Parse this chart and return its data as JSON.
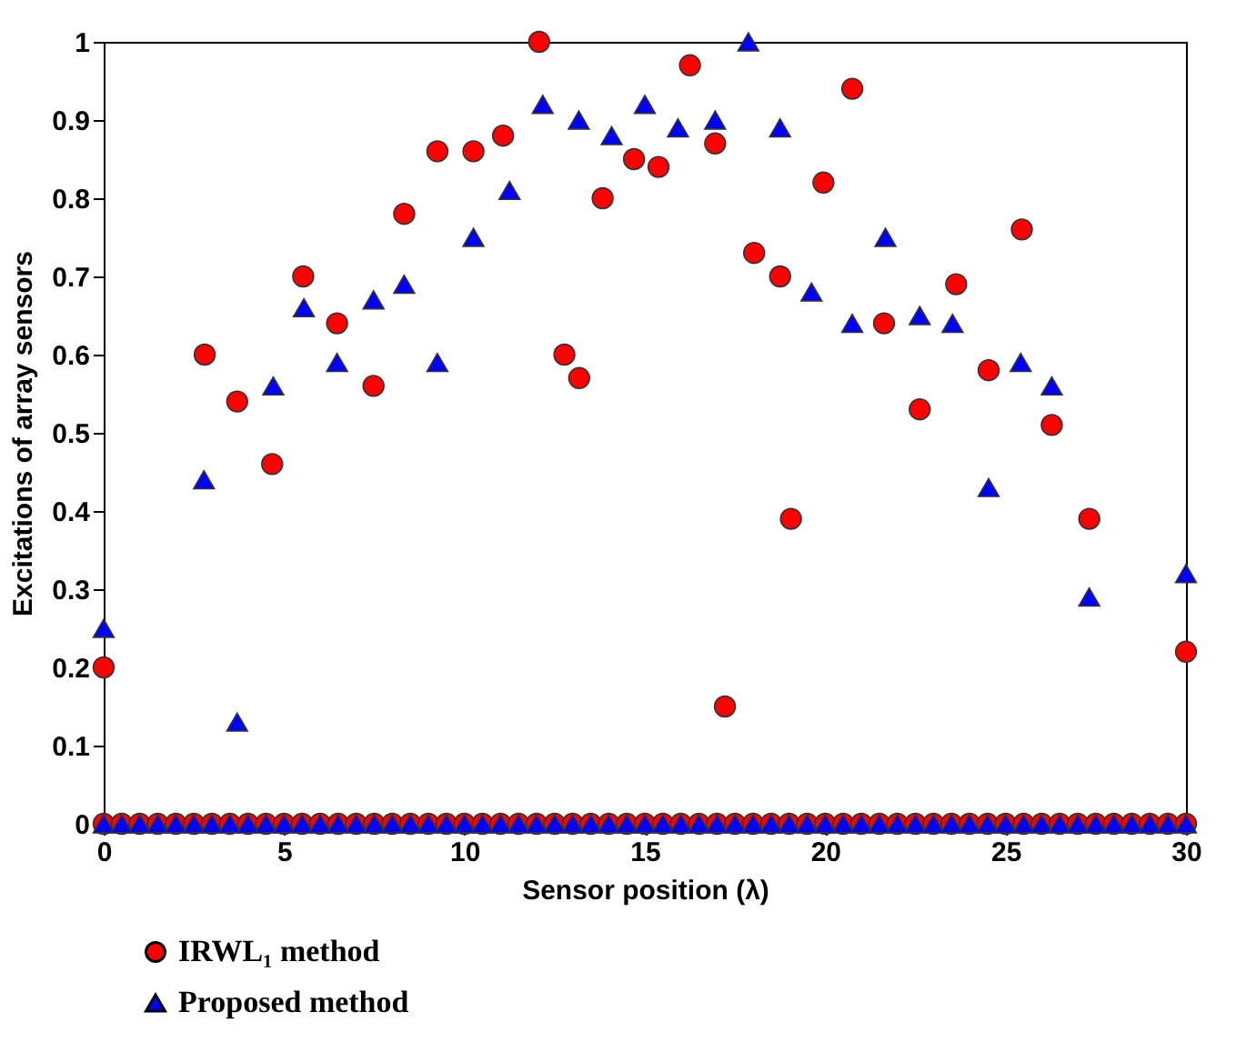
{
  "chart_data": {
    "type": "scatter",
    "xlabel": "Sensor position (λ)",
    "ylabel": "Excitations of array sensors",
    "xlim": [
      0,
      30
    ],
    "xticks": [
      0,
      5,
      10,
      15,
      20,
      25,
      30
    ],
    "ylim": [
      0,
      1
    ],
    "yticks": [
      0,
      0.1,
      0.2,
      0.3,
      0.4,
      0.5,
      0.6,
      0.7,
      0.8,
      0.9,
      1
    ],
    "grid": false,
    "legend": "bottom left",
    "series": [
      {
        "name": "IRWL₁ method",
        "color": "#ff0000",
        "marker": "circle",
        "x": [
          0,
          2.8,
          3.7,
          4.67,
          5.53,
          6.47,
          7.48,
          8.33,
          9.25,
          10.25,
          11.07,
          12.07,
          12.77,
          13.18,
          13.83,
          14.7,
          15.38,
          16.25,
          16.95,
          17.22,
          18.03,
          18.75,
          19.05,
          19.95,
          20.75,
          21.63,
          22.62,
          23.63,
          24.53,
          25.45,
          26.28,
          27.32,
          30,
          0,
          0.5,
          1,
          1.5,
          2,
          2.5,
          3,
          3.5,
          4,
          4.5,
          5,
          5.5,
          6,
          6.5,
          7,
          7.5,
          8,
          8.5,
          9,
          9.5,
          10,
          10.5,
          11,
          11.5,
          12,
          12.5,
          13,
          13.5,
          14,
          14.5,
          15,
          15.5,
          16,
          16.5,
          17,
          17.5,
          18,
          18.5,
          19,
          19.5,
          20,
          20.5,
          21,
          21.5,
          22,
          22.5,
          23,
          23.5,
          24,
          24.5,
          25,
          25.5,
          26,
          26.5,
          27,
          27.5,
          28,
          28.5,
          29,
          29.5,
          30
        ],
        "values": [
          0.2,
          0.6,
          0.54,
          0.46,
          0.7,
          0.64,
          0.56,
          0.78,
          0.86,
          0.86,
          0.88,
          1,
          0.6,
          0.57,
          0.8,
          0.85,
          0.84,
          0.97,
          0.87,
          0.15,
          0.73,
          0.7,
          0.39,
          0.82,
          0.94,
          0.64,
          0.53,
          0.69,
          0.58,
          0.76,
          0.51,
          0.39,
          0.22,
          0,
          0,
          0,
          0,
          0,
          0,
          0,
          0,
          0,
          0,
          0,
          0,
          0,
          0,
          0,
          0,
          0,
          0,
          0,
          0,
          0,
          0,
          0,
          0,
          0,
          0,
          0,
          0,
          0,
          0,
          0,
          0,
          0,
          0,
          0,
          0,
          0,
          0,
          0,
          0,
          0,
          0,
          0,
          0,
          0,
          0,
          0,
          0,
          0,
          0,
          0,
          0,
          0,
          0,
          0,
          0,
          0,
          0,
          0,
          0,
          0
        ]
      },
      {
        "name": "Proposed method",
        "color": "#0000ff",
        "marker": "triangle",
        "x": [
          0,
          2.78,
          3.7,
          4.7,
          5.55,
          6.47,
          7.48,
          8.33,
          9.25,
          10.25,
          11.25,
          12.17,
          13.17,
          14.08,
          15.0,
          15.92,
          16.95,
          17.87,
          18.75,
          19.62,
          20.75,
          21.67,
          22.62,
          23.53,
          24.53,
          25.42,
          26.28,
          27.32,
          30,
          0,
          0.5,
          1,
          1.5,
          2,
          2.5,
          3,
          3.5,
          4,
          4.5,
          5,
          5.5,
          6,
          6.5,
          7,
          7.5,
          8,
          8.5,
          9,
          9.5,
          10,
          10.5,
          11,
          11.5,
          12,
          12.5,
          13,
          13.5,
          14,
          14.5,
          15,
          15.5,
          16,
          16.5,
          17,
          17.5,
          18,
          18.5,
          19,
          19.5,
          20,
          20.5,
          21,
          21.5,
          22,
          22.5,
          23,
          23.5,
          24,
          24.5,
          25,
          25.5,
          26,
          26.5,
          27,
          27.5,
          28,
          28.5,
          29,
          29.5,
          30
        ],
        "values": [
          0.25,
          0.44,
          0.13,
          0.56,
          0.66,
          0.59,
          0.67,
          0.69,
          0.59,
          0.75,
          0.81,
          0.92,
          0.9,
          0.88,
          0.92,
          0.89,
          0.9,
          1,
          0.89,
          0.68,
          0.64,
          0.75,
          0.65,
          0.64,
          0.43,
          0.59,
          0.56,
          0.29,
          0.32,
          0,
          0,
          0,
          0,
          0,
          0,
          0,
          0,
          0,
          0,
          0,
          0,
          0,
          0,
          0,
          0,
          0,
          0,
          0,
          0,
          0,
          0,
          0,
          0,
          0,
          0,
          0,
          0,
          0,
          0,
          0,
          0,
          0,
          0,
          0,
          0,
          0,
          0,
          0,
          0,
          0,
          0,
          0,
          0,
          0,
          0,
          0,
          0,
          0,
          0,
          0,
          0,
          0,
          0,
          0,
          0,
          0,
          0,
          0,
          0,
          0
        ]
      }
    ]
  }
}
